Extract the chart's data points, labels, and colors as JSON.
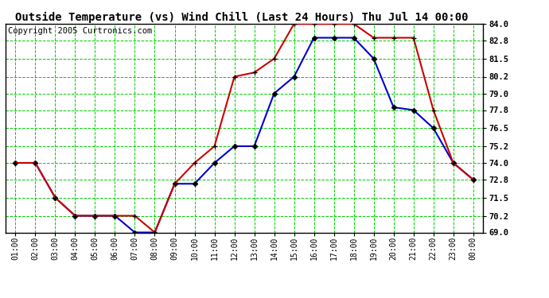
{
  "title": "Outside Temperature (vs) Wind Chill (Last 24 Hours) Thu Jul 14 00:00",
  "copyright": "Copyright 2005 Curtronics.com",
  "hours": [
    "01:00",
    "02:00",
    "03:00",
    "04:00",
    "05:00",
    "06:00",
    "07:00",
    "08:00",
    "09:00",
    "10:00",
    "11:00",
    "12:00",
    "13:00",
    "14:00",
    "15:00",
    "16:00",
    "17:00",
    "18:00",
    "19:00",
    "20:00",
    "21:00",
    "22:00",
    "23:00",
    "00:00"
  ],
  "outside_temp": [
    74.0,
    74.0,
    71.5,
    70.2,
    70.2,
    70.2,
    69.0,
    69.0,
    72.5,
    72.5,
    74.0,
    75.2,
    75.2,
    79.0,
    80.2,
    83.0,
    83.0,
    83.0,
    81.5,
    78.0,
    77.8,
    76.5,
    74.0,
    72.8
  ],
  "wind_chill": [
    74.0,
    74.0,
    71.5,
    70.2,
    70.2,
    70.2,
    70.2,
    69.0,
    72.5,
    74.0,
    75.2,
    80.2,
    80.5,
    81.5,
    84.0,
    84.0,
    84.0,
    84.0,
    83.0,
    83.0,
    83.0,
    77.8,
    74.0,
    72.8
  ],
  "outside_temp_color": "#0000cc",
  "wind_chill_color": "#cc0000",
  "ylim": [
    69.0,
    84.0
  ],
  "yticks": [
    69.0,
    70.2,
    71.5,
    72.8,
    74.0,
    75.2,
    76.5,
    77.8,
    79.0,
    80.2,
    81.5,
    82.8,
    84.0
  ],
  "bg_color": "#ffffff",
  "plot_bg_color": "#ffffff",
  "grid_color": "#00cc00",
  "vgrid_color": "#666666",
  "title_fontsize": 10,
  "copyright_fontsize": 7.5
}
